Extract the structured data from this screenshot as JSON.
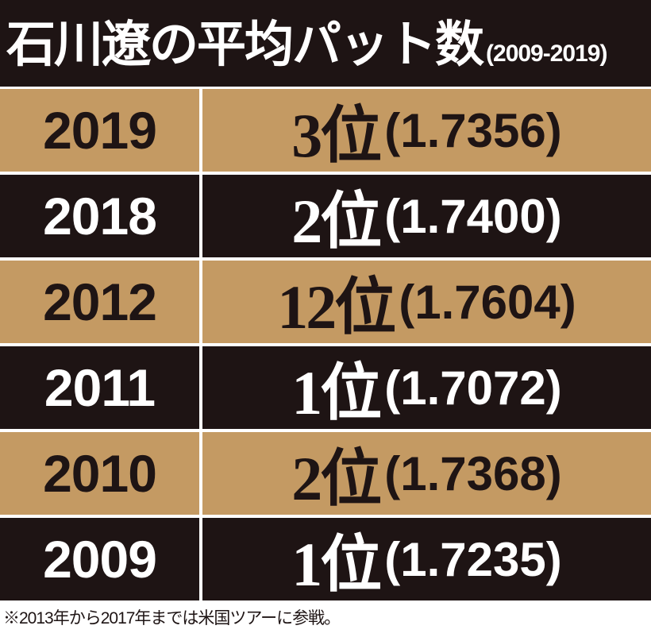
{
  "header": {
    "title": "石川遼の平均パット数",
    "subtitle": "(2009-2019)"
  },
  "colors": {
    "dark": "#1e1414",
    "tan": "#c49a63",
    "light_text": "#ffffff"
  },
  "chart_data": {
    "type": "table",
    "title": "石川遼の平均パット数",
    "subtitle": "(2009-2019)",
    "columns": [
      "year",
      "rank",
      "average_putts"
    ],
    "rows": [
      {
        "year": "2019",
        "rank_label": "3位",
        "rank": 3,
        "avg_label": "(1.7356)",
        "average_putts": 1.7356,
        "style": "tan"
      },
      {
        "year": "2018",
        "rank_label": "2位",
        "rank": 2,
        "avg_label": "(1.7400)",
        "average_putts": 1.74,
        "style": "dark"
      },
      {
        "year": "2012",
        "rank_label": "12位",
        "rank": 12,
        "avg_label": "(1.7604)",
        "average_putts": 1.7604,
        "style": "tan"
      },
      {
        "year": "2011",
        "rank_label": "1位",
        "rank": 1,
        "avg_label": "(1.7072)",
        "average_putts": 1.7072,
        "style": "dark"
      },
      {
        "year": "2010",
        "rank_label": "2位",
        "rank": 2,
        "avg_label": "(1.7368)",
        "average_putts": 1.7368,
        "style": "tan"
      },
      {
        "year": "2009",
        "rank_label": "1位",
        "rank": 1,
        "avg_label": "(1.7235)",
        "average_putts": 1.7235,
        "style": "dark"
      }
    ]
  },
  "footnote": "※2013年から2017年までは米国ツアーに参戦。"
}
